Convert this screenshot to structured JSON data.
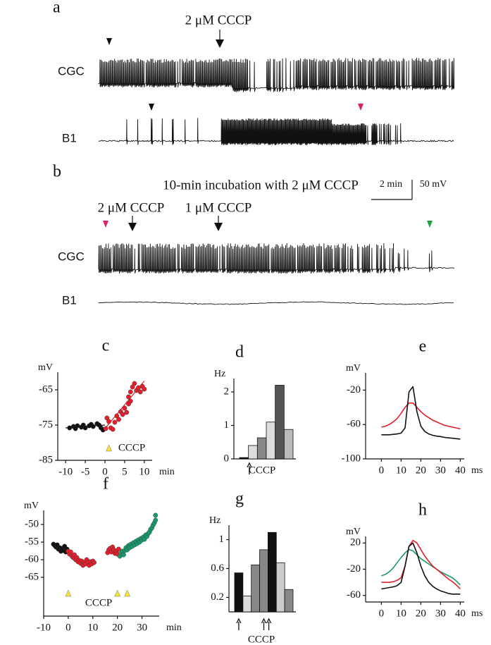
{
  "panel_a": {
    "label": "a",
    "drug": "2 μM CCCP",
    "traces": [
      "CGC",
      "B1"
    ]
  },
  "panel_b": {
    "label": "b",
    "title": "10-min incubation with 2 μM CCCP",
    "scale_time": "2 min",
    "scale_voltage": "50 mV",
    "drugs": [
      "2 μM CCCP",
      "1 μM CCCP"
    ],
    "traces": [
      "CGC",
      "B1"
    ]
  },
  "chart_data": [
    {
      "type": "scatter",
      "label": "c",
      "ylabel": "mV",
      "xlabel": "min",
      "xlim": [
        -12,
        12
      ],
      "ylim": [
        -85,
        -60
      ],
      "xticks": [
        -10,
        -5,
        0,
        5,
        10
      ],
      "yticks": [
        -65,
        -75,
        -85
      ],
      "series": [
        {
          "color": "#111111",
          "x": [
            -9,
            -8,
            -7.5,
            -7,
            -6,
            -5.5,
            -5,
            -4,
            -3.5,
            -3,
            -2,
            -1.5,
            -1,
            -0.5
          ],
          "values": [
            -75.8,
            -75.4,
            -76,
            -75.2,
            -75.6,
            -75,
            -75.8,
            -75.2,
            -74.8,
            -75.4,
            -74.6,
            -75,
            -75.8,
            -76.4
          ]
        },
        {
          "color": "#e0202c",
          "x": [
            0.2,
            0.5,
            1,
            1.5,
            2,
            2.5,
            3,
            3.5,
            4,
            4.5,
            5,
            5.5,
            6,
            6,
            6.5,
            6.5,
            7,
            7.5,
            8,
            8.5,
            9,
            9.5,
            10
          ],
          "values": [
            -76,
            -73,
            -74,
            -75.8,
            -76.2,
            -74.2,
            -72.4,
            -73.4,
            -71.2,
            -72,
            -70.2,
            -71.4,
            -69,
            -67,
            -68.2,
            -65.6,
            -64.2,
            -63.2,
            -65.2,
            -64.4,
            -65.6,
            -64,
            -64.8
          ]
        }
      ],
      "fits": [
        {
          "color": "#111111",
          "x": [
            -10,
            0
          ],
          "values": [
            -75.8,
            -75
          ]
        },
        {
          "color": "#e0202c",
          "x": [
            0,
            10
          ],
          "values": [
            -76,
            -62.5
          ]
        }
      ],
      "markers": [
        1
      ],
      "marker_color": "#f5e23a",
      "annotation": "CCCP"
    },
    {
      "type": "bar",
      "label": "d",
      "ylabel": "Hz",
      "ylim": [
        0,
        2.4
      ],
      "yticks": [
        0,
        1,
        2
      ],
      "categories": [
        null,
        null,
        null,
        null,
        null,
        null
      ],
      "values": [
        0.04,
        0.4,
        0.63,
        1.1,
        2.2,
        0.88
      ],
      "colors": [
        "#111111",
        "#dddddd",
        "#888888",
        "#dddddd",
        "#555555",
        "#bbbbbb"
      ],
      "arrows": [
        0.6
      ],
      "annotation": "CCCP"
    },
    {
      "type": "line",
      "label": "e",
      "ylabel": "mV",
      "xlabel": "ms",
      "xlim": [
        -8,
        42
      ],
      "ylim": [
        -100,
        0
      ],
      "xticks": [
        0,
        10,
        20,
        30,
        40
      ],
      "yticks": [
        -20,
        -60,
        -100
      ],
      "x": [
        0,
        2,
        4,
        6,
        8,
        10,
        12,
        14,
        16,
        18,
        20,
        22,
        24,
        26,
        28,
        30,
        32,
        34,
        36,
        38,
        40
      ],
      "series": [
        {
          "color": "#e0202c",
          "values": [
            -63,
            -62,
            -60,
            -57,
            -53,
            -47,
            -40,
            -35,
            -35,
            -40,
            -45,
            -49,
            -52,
            -55,
            -57,
            -59,
            -61,
            -62,
            -63,
            -64,
            -65
          ]
        },
        {
          "color": "#111111",
          "values": [
            -72,
            -72,
            -72,
            -71.5,
            -71,
            -70,
            -64,
            -22,
            -16,
            -45,
            -62,
            -68,
            -71,
            -72.5,
            -73.5,
            -74,
            -75,
            -75.5,
            -76,
            -76.5,
            -77
          ]
        }
      ]
    },
    {
      "type": "scatter",
      "label": "f",
      "ylabel": "mV",
      "xlabel": "min",
      "xlim": [
        -10,
        37
      ],
      "ylim": [
        -76,
        -46
      ],
      "xticks": [
        -10,
        0,
        10,
        20,
        30
      ],
      "yticks": [
        -50,
        -55,
        -60,
        -65
      ],
      "series": [
        {
          "color": "#111111",
          "x": [
            -6,
            -5.5,
            -5,
            -4.5,
            -4,
            -3.5,
            -3,
            -2.5,
            -2,
            -1.5,
            -1,
            -0.5
          ],
          "values": [
            -55.6,
            -56,
            -56.4,
            -55.8,
            -57,
            -56.6,
            -57.6,
            -56.8,
            -57.4,
            -56.2,
            -57.8,
            -57
          ]
        },
        {
          "color": "#e0202c",
          "x": [
            0,
            0.5,
            1,
            1.5,
            2,
            2.5,
            3,
            3.5,
            4,
            4.5,
            5,
            5.5,
            6,
            6.5,
            7,
            7.5,
            8,
            8.5,
            9,
            9.5,
            10,
            10.5,
            16,
            16.5,
            17,
            17.5,
            18,
            18.5,
            19,
            19.5,
            20,
            20.5
          ],
          "values": [
            -57.6,
            -58.4,
            -57.8,
            -59,
            -59.4,
            -58.6,
            -60,
            -59.4,
            -60.6,
            -60.2,
            -61,
            -60.4,
            -61.6,
            -60.8,
            -61.2,
            -60,
            -60.8,
            -61.6,
            -60.6,
            -61.2,
            -60.4,
            -60.8,
            -58,
            -57.2,
            -56.8,
            -57.8,
            -56.4,
            -57.2,
            -58.2,
            -57.6,
            -58.4,
            -57
          ]
        },
        {
          "color": "#1a9a6c",
          "x": [
            21,
            21.5,
            22,
            22.5,
            23,
            23.5,
            24,
            24.5,
            25,
            25.5,
            26,
            26.5,
            27,
            27.5,
            28,
            28.5,
            29,
            29.5,
            30,
            30.5,
            31,
            31.5,
            32,
            32.5,
            33,
            33.5,
            34,
            34.5,
            35,
            35.5,
            35.5
          ],
          "values": [
            -59,
            -58.2,
            -57.6,
            -58.6,
            -57.4,
            -56.6,
            -57.2,
            -56,
            -56.6,
            -55.6,
            -56.2,
            -55.2,
            -55.8,
            -54.8,
            -55.4,
            -54.4,
            -55,
            -54,
            -54.4,
            -53.6,
            -54.2,
            -53,
            -53.4,
            -52.6,
            -52.2,
            -51.4,
            -51,
            -50.2,
            -49.6,
            -48.8,
            -47.4
          ]
        }
      ],
      "markers": [
        0,
        20,
        24
      ],
      "marker_color": "#f5e23a",
      "annotation": "CCCP"
    },
    {
      "type": "bar",
      "label": "g",
      "ylabel": "Hz",
      "ylim": [
        0,
        1.2
      ],
      "yticks": [
        0.2,
        0.6,
        1.0
      ],
      "categories": [
        null,
        null,
        null,
        null,
        null,
        null,
        null
      ],
      "values": [
        0.54,
        0.22,
        0.65,
        0.86,
        1.1,
        0.68,
        0.31
      ],
      "colors": [
        "#111111",
        "#dddddd",
        "#888888",
        "#888888",
        "#111111",
        "#cccccc",
        "#888888"
      ],
      "arrows": [
        0,
        3,
        3.6
      ],
      "annotation": "CCCP"
    },
    {
      "type": "line",
      "label": "h",
      "ylabel": "mV",
      "xlabel": "ms",
      "xlim": [
        -8,
        42
      ],
      "ylim": [
        -70,
        30
      ],
      "xticks": [
        0,
        10,
        20,
        30,
        40
      ],
      "yticks": [
        20,
        -20,
        -60
      ],
      "x": [
        0,
        2,
        4,
        6,
        8,
        10,
        12,
        14,
        16,
        18,
        20,
        22,
        24,
        26,
        28,
        30,
        32,
        34,
        36,
        38,
        40
      ],
      "series": [
        {
          "color": "#1a9a6c",
          "values": [
            -30,
            -28,
            -24,
            -18,
            -10,
            -2,
            5,
            10,
            8,
            2,
            -4,
            -8,
            -12,
            -16,
            -20,
            -24,
            -27,
            -30,
            -33,
            -38,
            -44
          ]
        },
        {
          "color": "#e0202c",
          "values": [
            -40,
            -40,
            -40,
            -39,
            -37,
            -33,
            -15,
            15,
            24,
            20,
            10,
            0,
            -8,
            -15,
            -20,
            -25,
            -30,
            -35,
            -39,
            -44,
            -50
          ]
        },
        {
          "color": "#111111",
          "values": [
            -50,
            -49,
            -48,
            -47,
            -45,
            -40,
            -15,
            15,
            20,
            5,
            -15,
            -30,
            -40,
            -46,
            -50,
            -53,
            -55,
            -57,
            -58,
            -58,
            -58
          ]
        }
      ]
    }
  ]
}
